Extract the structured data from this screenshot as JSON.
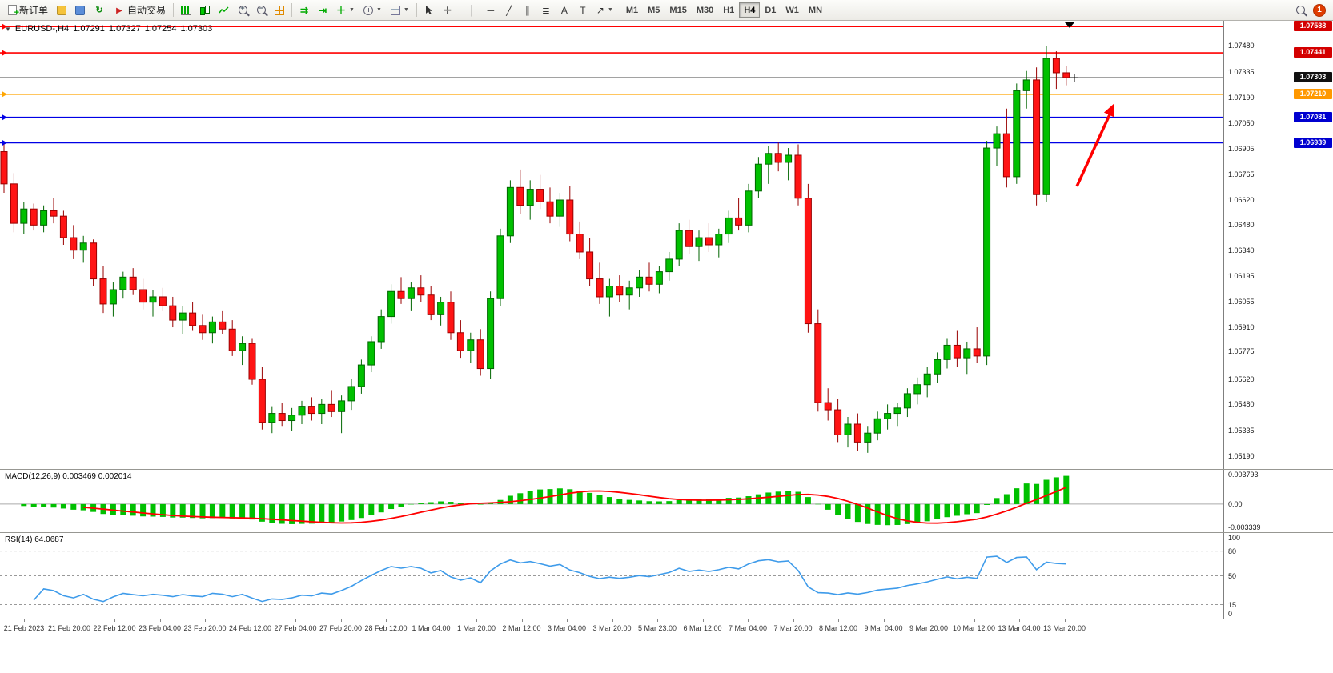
{
  "toolbar": {
    "new_order_label": "新订单",
    "auto_trading_label": "自动交易",
    "text_tool_label": "A",
    "label_tool_label": "T",
    "timeframes": [
      "M1",
      "M5",
      "M15",
      "M30",
      "H1",
      "H4",
      "D1",
      "W1",
      "MN"
    ],
    "active_timeframe": "H4",
    "notification_count": "1"
  },
  "chart_data": {
    "type": "candlestick",
    "symbol": "EURUSD-",
    "timeframe": "H4",
    "header": {
      "symbol_timeframe": "EURUSD-,H4",
      "open": "1.07291",
      "high": "1.07327",
      "low": "1.07254",
      "close": "1.07303"
    },
    "colors": {
      "up": "#00C000",
      "up_border": "#006600",
      "down": "#FF1414",
      "down_border": "#990000",
      "macd_bar": "#00C000",
      "macd_signal": "#FF0000",
      "rsi_line": "#3E9BEA",
      "arrow": "#FF0000",
      "current_line": "#444444"
    },
    "price_range": {
      "max": 1.0762,
      "min": 1.0512
    },
    "price_axis_ticks": [
      "1.07480",
      "1.07335",
      "1.07190",
      "1.07050",
      "1.06905",
      "1.06765",
      "1.06620",
      "1.06480",
      "1.06340",
      "1.06195",
      "1.06055",
      "1.05910",
      "1.05775",
      "1.05620",
      "1.05480",
      "1.05335",
      "1.05190"
    ],
    "horizontal_lines": [
      {
        "price": 1.07588,
        "label": "1.07588",
        "color": "#FF0000",
        "badge": "#D40000"
      },
      {
        "price": 1.07441,
        "label": "1.07441",
        "color": "#FF0000",
        "badge": "#D40000"
      },
      {
        "price": 1.0721,
        "label": "1.07210",
        "color": "#FFA500",
        "badge": "#FF9800"
      },
      {
        "price": 1.07081,
        "label": "1.07081",
        "color": "#0000E6",
        "badge": "#0000D0"
      },
      {
        "price": 1.06939,
        "label": "1.06939",
        "color": "#0000E6",
        "badge": "#0000D0"
      }
    ],
    "current_price": {
      "value": 1.07303,
      "label": "1.07303",
      "badge": "#111111"
    },
    "time_labels": [
      "21 Feb 2023",
      "21 Feb 20:00",
      "22 Feb 12:00",
      "23 Feb 04:00",
      "23 Feb 20:00",
      "24 Feb 12:00",
      "27 Feb 04:00",
      "27 Feb 20:00",
      "28 Feb 12:00",
      "1 Mar 04:00",
      "1 Mar 20:00",
      "2 Mar 12:00",
      "3 Mar 04:00",
      "3 Mar 20:00",
      "5 Mar 23:00",
      "6 Mar 12:00",
      "7 Mar 04:00",
      "7 Mar 20:00",
      "8 Mar 12:00",
      "9 Mar 04:00",
      "9 Mar 20:00",
      "10 Mar 12:00",
      "13 Mar 04:00",
      "13 Mar 20:00"
    ],
    "indicators": [
      {
        "name": "MACD",
        "label": "MACD(12,26,9) 0.003469 0.002014",
        "axis_labels": [
          "0.003793",
          "0.00",
          "-0.003339"
        ],
        "scale_max": 0.0044,
        "scale_min": -0.0036
      },
      {
        "name": "RSI",
        "label": "RSI(14) 64.0687",
        "axis_labels": [
          "100",
          "80",
          "50",
          "15",
          "0"
        ],
        "levels": [
          80,
          50,
          15
        ]
      }
    ],
    "annotation": {
      "type": "arrow",
      "color": "#FF0000"
    },
    "candles": [
      [
        1.0689,
        1.0693,
        1.0666,
        1.0671
      ],
      [
        1.0671,
        1.0677,
        1.0644,
        1.0649
      ],
      [
        1.0649,
        1.0661,
        1.0643,
        1.0657
      ],
      [
        1.0657,
        1.066,
        1.0645,
        1.0648
      ],
      [
        1.0648,
        1.0659,
        1.0644,
        1.0656
      ],
      [
        1.0656,
        1.0663,
        1.0649,
        1.0653
      ],
      [
        1.0653,
        1.0656,
        1.0637,
        1.0641
      ],
      [
        1.0641,
        1.0648,
        1.0629,
        1.0634
      ],
      [
        1.0634,
        1.0642,
        1.0627,
        1.0638
      ],
      [
        1.0638,
        1.064,
        1.0614,
        1.0618
      ],
      [
        1.0618,
        1.0625,
        1.0599,
        1.0604
      ],
      [
        1.0604,
        1.0616,
        1.0597,
        1.0612
      ],
      [
        1.0612,
        1.0622,
        1.0607,
        1.0619
      ],
      [
        1.0619,
        1.0624,
        1.0609,
        1.0612
      ],
      [
        1.0612,
        1.0618,
        1.0601,
        1.0605
      ],
      [
        1.0605,
        1.0612,
        1.0597,
        1.0608
      ],
      [
        1.0608,
        1.0613,
        1.06,
        1.0603
      ],
      [
        1.0603,
        1.0608,
        1.0591,
        1.0595
      ],
      [
        1.0595,
        1.0603,
        1.0587,
        1.0599
      ],
      [
        1.0599,
        1.0605,
        1.0589,
        1.0592
      ],
      [
        1.0592,
        1.0598,
        1.0584,
        1.0588
      ],
      [
        1.0588,
        1.0597,
        1.0582,
        1.0594
      ],
      [
        1.0594,
        1.06,
        1.0587,
        1.059
      ],
      [
        1.059,
        1.0595,
        1.0575,
        1.0578
      ],
      [
        1.0578,
        1.0586,
        1.057,
        1.0582
      ],
      [
        1.0582,
        1.0585,
        1.0559,
        1.0562
      ],
      [
        1.0562,
        1.0569,
        1.0534,
        1.0538
      ],
      [
        1.0538,
        1.0547,
        1.0532,
        1.0543
      ],
      [
        1.0543,
        1.0549,
        1.0536,
        1.0539
      ],
      [
        1.0539,
        1.0546,
        1.0533,
        1.0542
      ],
      [
        1.0542,
        1.055,
        1.0537,
        1.0547
      ],
      [
        1.0547,
        1.0552,
        1.0539,
        1.0543
      ],
      [
        1.0543,
        1.0551,
        1.0537,
        1.0548
      ],
      [
        1.0548,
        1.0556,
        1.0541,
        1.0544
      ],
      [
        1.0544,
        1.0553,
        1.0532,
        1.055
      ],
      [
        1.055,
        1.0562,
        1.0545,
        1.0558
      ],
      [
        1.0558,
        1.0573,
        1.0554,
        1.057
      ],
      [
        1.057,
        1.0586,
        1.0566,
        1.0583
      ],
      [
        1.0583,
        1.0601,
        1.0579,
        1.0597
      ],
      [
        1.0597,
        1.0615,
        1.0593,
        1.0611
      ],
      [
        1.0611,
        1.0619,
        1.0604,
        1.0607
      ],
      [
        1.0607,
        1.0616,
        1.06,
        1.0613
      ],
      [
        1.0613,
        1.062,
        1.0605,
        1.0609
      ],
      [
        1.0609,
        1.0614,
        1.0595,
        1.0598
      ],
      [
        1.0598,
        1.0608,
        1.0592,
        1.0605
      ],
      [
        1.0605,
        1.0611,
        1.0584,
        1.0588
      ],
      [
        1.0588,
        1.0595,
        1.0574,
        1.0578
      ],
      [
        1.0578,
        1.0588,
        1.0571,
        1.0584
      ],
      [
        1.0584,
        1.059,
        1.0564,
        1.0568
      ],
      [
        1.0568,
        1.0611,
        1.0562,
        1.0607
      ],
      [
        1.0607,
        1.0646,
        1.0603,
        1.0642
      ],
      [
        1.0642,
        1.0673,
        1.0638,
        1.0669
      ],
      [
        1.0669,
        1.0679,
        1.0654,
        1.0659
      ],
      [
        1.0659,
        1.0673,
        1.0651,
        1.0668
      ],
      [
        1.0668,
        1.0676,
        1.0657,
        1.0661
      ],
      [
        1.0661,
        1.0669,
        1.0649,
        1.0653
      ],
      [
        1.0653,
        1.0666,
        1.0647,
        1.0662
      ],
      [
        1.0662,
        1.067,
        1.0639,
        1.0643
      ],
      [
        1.0643,
        1.065,
        1.0629,
        1.0633
      ],
      [
        1.0633,
        1.0641,
        1.0614,
        1.0618
      ],
      [
        1.0618,
        1.0627,
        1.0604,
        1.0608
      ],
      [
        1.0608,
        1.0618,
        1.0597,
        1.0614
      ],
      [
        1.0614,
        1.062,
        1.0605,
        1.0609
      ],
      [
        1.0609,
        1.0617,
        1.0601,
        1.0613
      ],
      [
        1.0613,
        1.0623,
        1.0608,
        1.0619
      ],
      [
        1.0619,
        1.0627,
        1.0611,
        1.0615
      ],
      [
        1.0615,
        1.0625,
        1.061,
        1.0622
      ],
      [
        1.0622,
        1.0633,
        1.0617,
        1.0629
      ],
      [
        1.0629,
        1.0649,
        1.0625,
        1.0645
      ],
      [
        1.0645,
        1.0651,
        1.0632,
        1.0636
      ],
      [
        1.0636,
        1.0645,
        1.0628,
        1.0641
      ],
      [
        1.0641,
        1.0649,
        1.0633,
        1.0637
      ],
      [
        1.0637,
        1.0646,
        1.063,
        1.0643
      ],
      [
        1.0643,
        1.0656,
        1.0638,
        1.0652
      ],
      [
        1.0652,
        1.0663,
        1.0645,
        1.0648
      ],
      [
        1.0648,
        1.0671,
        1.0644,
        1.0667
      ],
      [
        1.0667,
        1.0686,
        1.0663,
        1.0682
      ],
      [
        1.0682,
        1.0692,
        1.0671,
        1.0688
      ],
      [
        1.0688,
        1.0694,
        1.0678,
        1.0683
      ],
      [
        1.0683,
        1.0691,
        1.0673,
        1.0687
      ],
      [
        1.0687,
        1.0693,
        1.0659,
        1.0663
      ],
      [
        1.0663,
        1.0671,
        1.0588,
        1.0593
      ],
      [
        1.0593,
        1.0601,
        1.0544,
        1.0549
      ],
      [
        1.0549,
        1.0557,
        1.0539,
        1.0545
      ],
      [
        1.0545,
        1.0551,
        1.0527,
        1.0531
      ],
      [
        1.0531,
        1.0541,
        1.0524,
        1.0537
      ],
      [
        1.0537,
        1.0543,
        1.0522,
        1.0527
      ],
      [
        1.0527,
        1.0536,
        1.0521,
        1.0532
      ],
      [
        1.0532,
        1.0544,
        1.0528,
        1.054
      ],
      [
        1.054,
        1.0548,
        1.0534,
        1.0543
      ],
      [
        1.0543,
        1.0549,
        1.0536,
        1.0546
      ],
      [
        1.0546,
        1.0557,
        1.0541,
        1.0554
      ],
      [
        1.0554,
        1.0563,
        1.0548,
        1.0559
      ],
      [
        1.0559,
        1.0569,
        1.0552,
        1.0565
      ],
      [
        1.0565,
        1.0577,
        1.056,
        1.0573
      ],
      [
        1.0573,
        1.0585,
        1.0568,
        1.0581
      ],
      [
        1.0581,
        1.0589,
        1.0569,
        1.0574
      ],
      [
        1.0574,
        1.0583,
        1.0565,
        1.0579
      ],
      [
        1.0579,
        1.0591,
        1.0571,
        1.0575
      ],
      [
        1.0575,
        1.0695,
        1.057,
        1.0691
      ],
      [
        1.0691,
        1.0703,
        1.0681,
        1.0699
      ],
      [
        1.0699,
        1.0713,
        1.0669,
        1.0675
      ],
      [
        1.0675,
        1.0727,
        1.0671,
        1.0723
      ],
      [
        1.0723,
        1.0734,
        1.0713,
        1.0729
      ],
      [
        1.0729,
        1.0736,
        1.0659,
        1.0665
      ],
      [
        1.0665,
        1.0748,
        1.0661,
        1.0741
      ],
      [
        1.0741,
        1.0745,
        1.0724,
        1.0733
      ],
      [
        1.0733,
        1.0737,
        1.0726,
        1.07303
      ]
    ]
  }
}
